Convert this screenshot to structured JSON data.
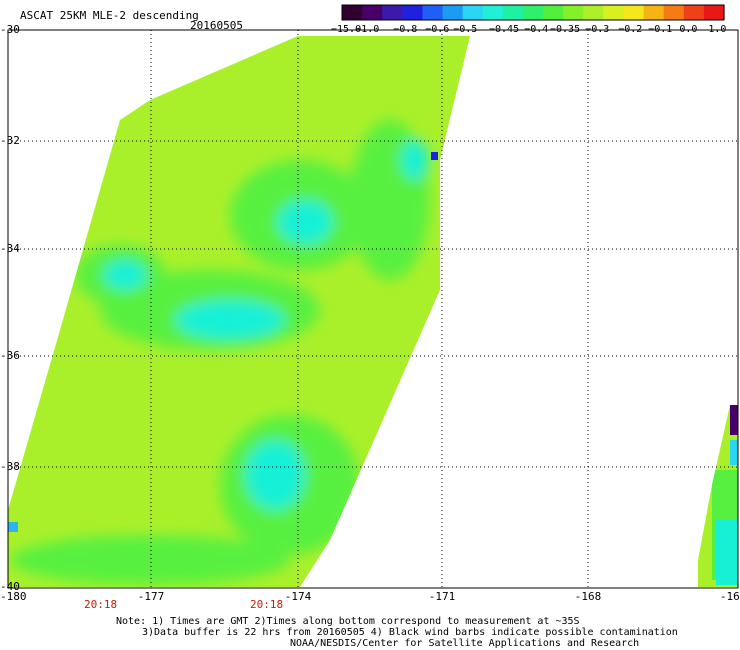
{
  "title": "ASCAT 25KM MLE-2 descending",
  "date": "20160505",
  "colorbar": {
    "colors": [
      "#300030",
      "#480068",
      "#3a1aaa",
      "#2020e0",
      "#1f5ff5",
      "#1a9cf5",
      "#2bd6f2",
      "#1ff0d6",
      "#1ef0a4",
      "#2ef06a",
      "#52f03c",
      "#84f02a",
      "#aef028",
      "#d6f020",
      "#f4e81a",
      "#f6b414",
      "#f47c12",
      "#f0401a",
      "#e81818"
    ],
    "labels": [
      "−15.0",
      "−1.0",
      "−0.8",
      "−0.6",
      "−0.5",
      "−0.45",
      "−0.4",
      "−0.35",
      "−0.3",
      "−0.2",
      "−0.1",
      "0.0",
      "1.0"
    ]
  },
  "axes": {
    "lat_labels": [
      "-30",
      "-32",
      "-34",
      "-36",
      "-38",
      "-40"
    ],
    "lon_labels": [
      "-180",
      "-177",
      "-174",
      "-171",
      "-168",
      "-16"
    ]
  },
  "times": [
    "20:18",
    "20:18"
  ],
  "colors": {
    "base": "#aaf02a",
    "green": "#58f040",
    "cyan": "#18f0d6",
    "time_label": "#c81e00"
  },
  "notes": {
    "line1": "Note: 1) Times are GMT 2)Times along bottom correspond to measurement at ~35S",
    "line2": "3)Data buffer is 22 hrs from 20160505 4) Black wind barbs indicate possible contamination",
    "line3": "NOAA/NESDIS/Center for Satellite Applications and Research"
  }
}
